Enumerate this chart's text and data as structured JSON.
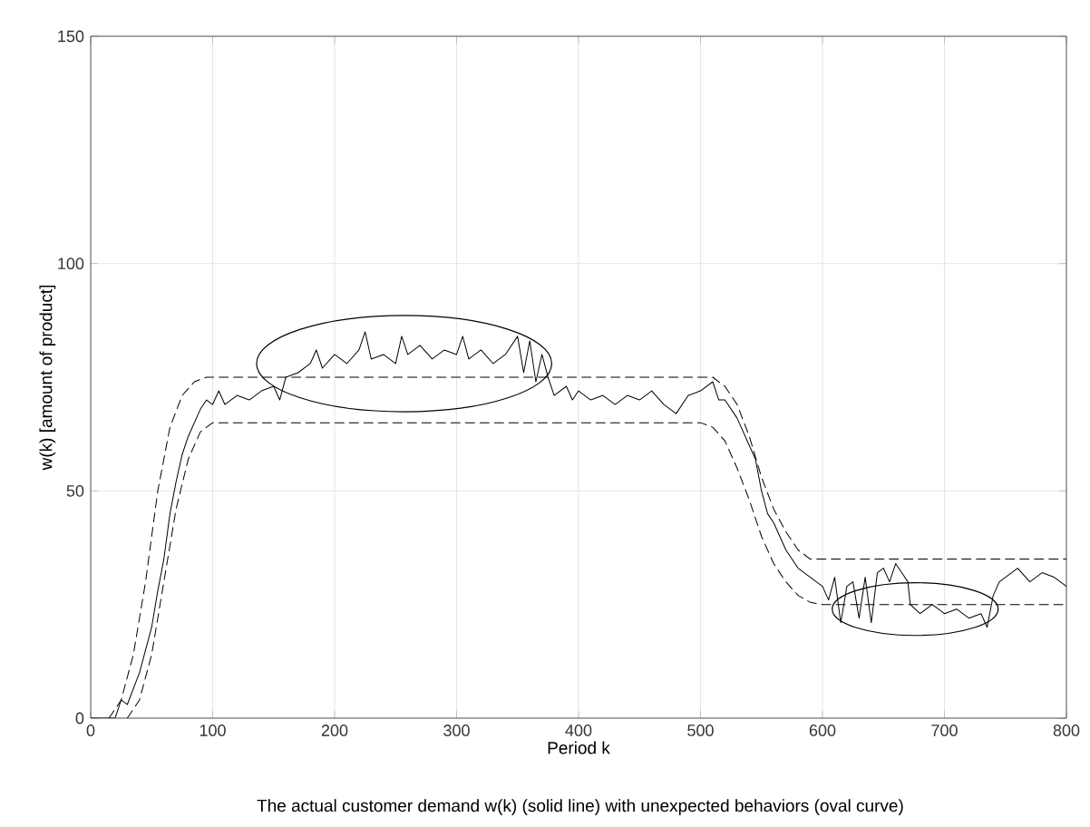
{
  "chart_data": {
    "type": "line",
    "xlabel": "Period k",
    "ylabel": "w(k) [amount of product]",
    "annotations": [
      "The actual customer demand w(k) (solid line) with unexpected behaviors (oval curve)"
    ],
    "xlim": [
      0,
      800
    ],
    "ylim": [
      0,
      150
    ],
    "xticks": [
      0,
      100,
      200,
      300,
      400,
      500,
      600,
      700,
      800
    ],
    "yticks": [
      0,
      50,
      100,
      150
    ],
    "grid": true,
    "series": [
      {
        "color": "#000000",
        "line_style": "solid",
        "x": [
          0,
          10,
          20,
          25,
          30,
          40,
          50,
          55,
          60,
          65,
          70,
          75,
          80,
          85,
          90,
          95,
          100,
          105,
          110,
          120,
          130,
          140,
          150,
          155,
          160,
          170,
          180,
          185,
          190,
          200,
          210,
          220,
          225,
          230,
          240,
          250,
          255,
          260,
          270,
          280,
          290,
          300,
          305,
          310,
          320,
          330,
          340,
          350,
          355,
          360,
          365,
          370,
          375,
          380,
          390,
          395,
          400,
          410,
          420,
          430,
          440,
          450,
          460,
          470,
          480,
          490,
          500,
          510,
          515,
          520,
          530,
          540,
          545,
          550,
          555,
          560,
          565,
          570,
          580,
          590,
          600,
          605,
          610,
          615,
          620,
          625,
          630,
          635,
          640,
          645,
          650,
          655,
          660,
          665,
          670,
          672,
          680,
          690,
          700,
          710,
          720,
          730,
          735,
          740,
          745,
          750,
          760,
          770,
          780,
          790,
          800
        ],
        "values": [
          0,
          0,
          0,
          4,
          3,
          10,
          20,
          28,
          35,
          45,
          52,
          58,
          62,
          65,
          68,
          70,
          69,
          72,
          69,
          71,
          70,
          72,
          73,
          70,
          75,
          76,
          78,
          81,
          77,
          80,
          78,
          81,
          85,
          79,
          80,
          78,
          84,
          80,
          82,
          79,
          81,
          80,
          84,
          79,
          81,
          78,
          80,
          84,
          76,
          83,
          74,
          80,
          75,
          71,
          73,
          70,
          72,
          70,
          71,
          69,
          71,
          70,
          72,
          69,
          67,
          71,
          72,
          74,
          70,
          70,
          66,
          60,
          57,
          50,
          45,
          43,
          40,
          37,
          33,
          31,
          29,
          26,
          31,
          21,
          29,
          30,
          22,
          31,
          21,
          32,
          33,
          30,
          34,
          32,
          30,
          25,
          23,
          25,
          23,
          24,
          22,
          23,
          20,
          27,
          30,
          31,
          33,
          30,
          32,
          31,
          29
        ]
      },
      {
        "color": "#000000",
        "line_style": "dashed",
        "x": [
          15,
          25,
          35,
          45,
          55,
          65,
          75,
          85,
          95,
          510,
          520,
          530,
          540,
          550,
          560,
          570,
          580,
          590,
          800
        ],
        "values": [
          0,
          4,
          14,
          30,
          50,
          64,
          71,
          74,
          75,
          75,
          73,
          69,
          62,
          53,
          46,
          41,
          37,
          35,
          35
        ]
      },
      {
        "color": "#000000",
        "line_style": "dashed",
        "x": [
          30,
          40,
          50,
          60,
          70,
          80,
          90,
          100,
          500,
          510,
          520,
          530,
          540,
          550,
          560,
          570,
          580,
          590,
          600,
          800
        ],
        "values": [
          0,
          4,
          14,
          30,
          46,
          57,
          63,
          65,
          65,
          64,
          61,
          55,
          48,
          40,
          34,
          30,
          27,
          25.5,
          25,
          25
        ]
      }
    ]
  }
}
